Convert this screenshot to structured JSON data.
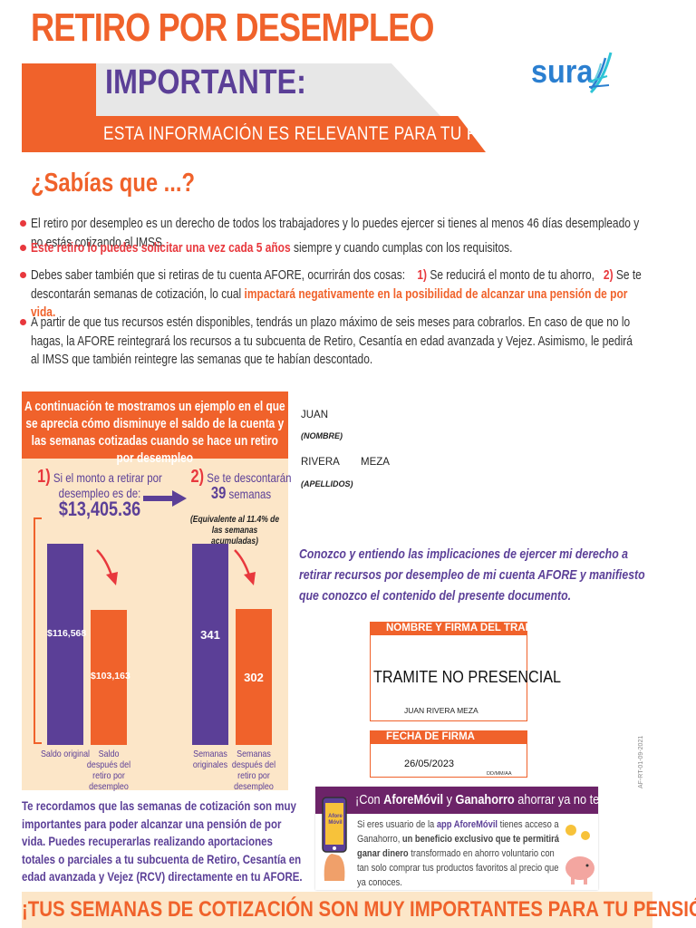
{
  "header": {
    "title": "RETIRO POR DESEMPLEO",
    "important": "IMPORTANTE:",
    "subtitle": "ESTA INFORMACIÓN ES RELEVANTE PARA TU FUTURO",
    "logo_text": "sura"
  },
  "intro": {
    "heading": "¿Sabías que ...?",
    "bullet1": "El retiro por desempleo es un derecho de todos los trabajadores y lo puedes ejercer si tienes al menos 46 días desempleado y no estás cotizando al IMSS.",
    "bullet2_bold": "Este retiro lo puedes solicitar una vez cada 5 años",
    "bullet2_rest": " siempre y cuando cumplas con los requisitos.",
    "bullet3_a": "Debes saber también que si retiras de tu cuenta AFORE, ocurrirán dos cosas:",
    "bullet3_n1": "1)",
    "bullet3_b": " Se reducirá el monto de tu ahorro,",
    "bullet3_n2": "2)",
    "bullet3_c": " Se te descontarán semanas de cotización, lo cual ",
    "bullet3_bold": "impactará negativamente en la posibilidad de alcanzar una pensión de por vida.",
    "bullet4": "A partir de que tus recursos estén disponibles, tendrás un plazo máximo de seis meses para cobrarlos. En caso de que no lo hagas, la AFORE reintegrará los recursos a tu subcuenta de Retiro, Cesantía en edad avanzada y Vejez. Asimismo, le pedirá al IMSS que también reintegre las semanas que te habían descontado."
  },
  "example": {
    "header": "A continuación te mostramos un ejemplo en el que se aprecia cómo disminuye el saldo de la cuenta y las semanas cotizadas cuando se hace un retiro por desempleo",
    "step1_num": "1)",
    "step1_text": "Si el monto a retirar por desempleo es de:",
    "step1_amount": "$13,405.36",
    "step2_num": "2)",
    "step2_text_a": "Se te descontarán",
    "step2_weeks": "39",
    "step2_text_b": "semanas",
    "step2_note": "(Equivalente al 11.4% de las semanas acumuladas)"
  },
  "chart_data": [
    {
      "type": "bar",
      "categories": [
        "Saldo original",
        "Saldo después del retiro por desempleo"
      ],
      "values": [
        116568,
        103163
      ],
      "labels": [
        "$116,568",
        "$103,163"
      ],
      "colors": [
        "#5b3f97",
        "#f0622b"
      ]
    },
    {
      "type": "bar",
      "categories": [
        "Semanas originales",
        "Semanas después del retiro por desempleo"
      ],
      "values": [
        341,
        302
      ],
      "labels": [
        "341",
        "302"
      ],
      "colors": [
        "#5b3f97",
        "#f0622b"
      ]
    }
  ],
  "worker": {
    "first_name": "JUAN",
    "first_name_caption": "(NOMBRE)",
    "last_name_1": "RIVERA",
    "last_name_2": "MEZA",
    "last_name_caption": "(APELLIDOS)"
  },
  "acknowledgement": "Conozco y entiendo las implicaciones de ejercer mi derecho a retirar recursos por desempleo de mi cuenta AFORE y manifiesto que conozco el contenido del presente documento.",
  "signature": {
    "header": "NOMBRE Y FIRMA DEL TRABAJADOR",
    "value": "TRAMITE NO PRESENCIAL",
    "name": "JUAN RIVERA MEZA"
  },
  "date": {
    "header": "FECHA DE FIRMA",
    "value": "26/05/2023",
    "format": "DD/MM/AA"
  },
  "reminder": "Te recordamos que las semanas de cotización son muy importantes para poder alcanzar una pensión de por vida. Puedes recuperarlas realizando aportaciones totales o parciales a tu subcuenta de Retiro, Cesantía en edad avanzada y Vejez (RCV) directamente en tu AFORE.",
  "promo": {
    "title_a": "¡Con ",
    "title_b": "AforeMóvil",
    "title_c": " y ",
    "title_d": "Ganahorro",
    "title_e": " ahorrar ya no te cuesta!",
    "app_badge": "Afore Móvil",
    "body_a": "Si eres usuario de la ",
    "body_b": "app AforeMóvil",
    "body_c": " tienes acceso a Ganahorro, ",
    "body_d": "un beneficio exclusivo que te permitirá ganar dinero",
    "body_e": " transformado en ahorro voluntario con tan solo comprar tus productos favoritos al precio que ya conoces."
  },
  "footer": "¡TUS SEMANAS DE COTIZACIÓN SON MUY IMPORTANTES PARA TU PENSIÓN!",
  "doc_code": "AF-RT-01-09-2021"
}
